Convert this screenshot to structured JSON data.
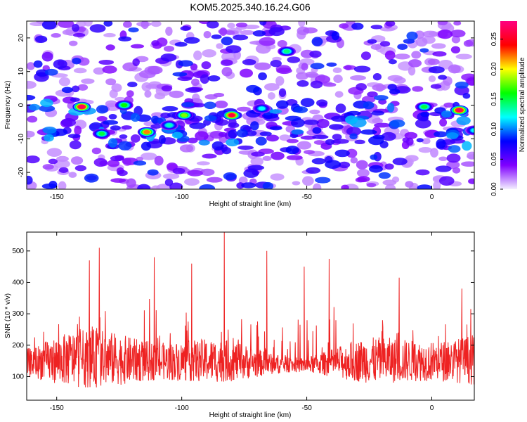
{
  "title": "KOM5.2025.340.16.24.G06",
  "chart_data": [
    {
      "type": "heatmap",
      "xlabel": "Height of straight line (km)",
      "ylabel": "Frequency (Hz)",
      "xlim": [
        -162,
        17
      ],
      "ylim": [
        -25,
        25
      ],
      "xticks": [
        -150,
        -100,
        -50,
        0
      ],
      "yticks": [
        -20,
        -10,
        0,
        10,
        20
      ],
      "colorbar": {
        "label": "Normalized spectral amplitude",
        "range": [
          0,
          0.28
        ],
        "ticks": [
          "0.00",
          "0.05",
          "0.10",
          "0.15",
          "0.20",
          "0.25"
        ],
        "colors": [
          "#f4f0ff",
          "#7f00ff",
          "#0000ff",
          "#00ffff",
          "#00ff00",
          "#ffff00",
          "#ff0000",
          "#ff0080"
        ]
      },
      "hot_spots": [
        {
          "x": -140,
          "y": -0.5,
          "value": 0.27
        },
        {
          "x": -114,
          "y": -8,
          "value": 0.22
        },
        {
          "x": -132,
          "y": -8.5,
          "value": 0.15
        },
        {
          "x": -80,
          "y": -3,
          "value": 0.26
        },
        {
          "x": -99,
          "y": -3,
          "value": 0.18
        },
        {
          "x": -123,
          "y": 0,
          "value": 0.16
        },
        {
          "x": 11,
          "y": -1.5,
          "value": 0.27
        },
        {
          "x": -58,
          "y": 16,
          "value": 0.14
        },
        {
          "x": -105,
          "y": -6,
          "value": 0.13
        },
        {
          "x": 17,
          "y": -7.5,
          "value": 0.12
        },
        {
          "x": -3,
          "y": -0.5,
          "value": 0.15
        },
        {
          "x": -68,
          "y": -1,
          "value": 0.12
        }
      ],
      "grid": false
    },
    {
      "type": "line",
      "xlabel": "Height of straight line (km)",
      "ylabel": "SNR (10 * v/v)",
      "xlim": [
        -162,
        17
      ],
      "ylim": [
        25,
        560
      ],
      "xticks": [
        -150,
        -100,
        -50,
        0
      ],
      "yticks": [
        100,
        200,
        300,
        400,
        500
      ],
      "series_color": "#ee2222",
      "peaks": [
        {
          "x": -83,
          "y": 560
        },
        {
          "x": -133,
          "y": 510
        },
        {
          "x": -66,
          "y": 500
        },
        {
          "x": -137,
          "y": 470
        },
        {
          "x": -111,
          "y": 480
        },
        {
          "x": -96,
          "y": 460
        },
        {
          "x": -41,
          "y": 475
        },
        {
          "x": -51,
          "y": 450
        },
        {
          "x": -13,
          "y": 415
        },
        {
          "x": 12,
          "y": 380
        }
      ],
      "baseline": 130,
      "noise_amplitude": 120,
      "grid": false
    }
  ]
}
